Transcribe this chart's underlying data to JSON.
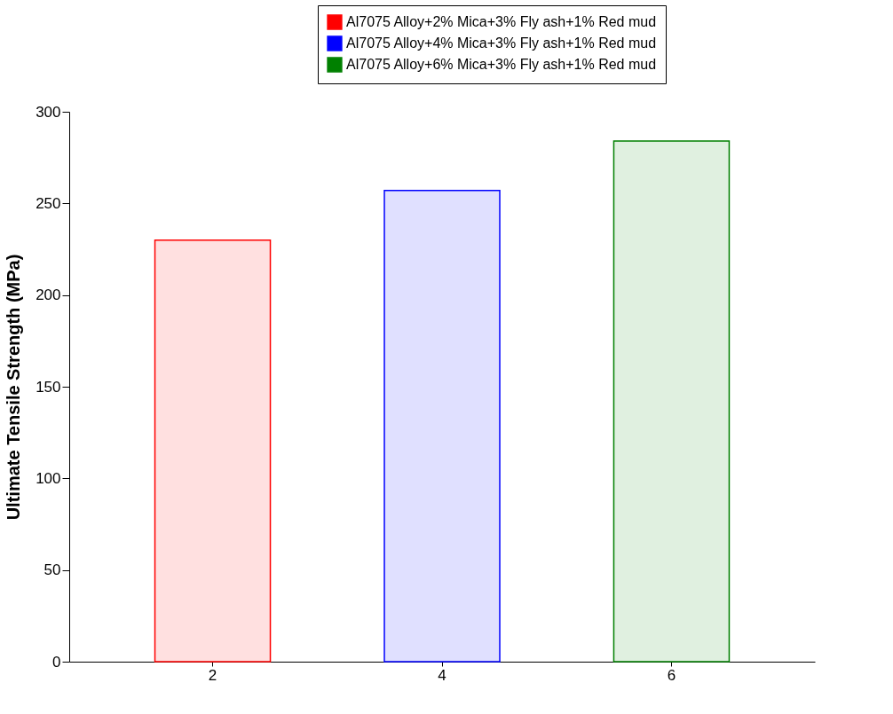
{
  "chart_data": {
    "type": "bar",
    "ylabel": "Ultimate Tensile Strength (MPa)",
    "categories": [
      "2",
      "4",
      "6"
    ],
    "series": [
      {
        "name": "Al7075 Alloy+2% Mica+3% Fly ash+1% Red mud",
        "color": "#ff0000",
        "values": [
          230,
          null,
          null
        ]
      },
      {
        "name": "Al7075 Alloy+4% Mica+3% Fly ash+1% Red mud",
        "color": "#0000ff",
        "values": [
          null,
          257,
          null
        ]
      },
      {
        "name": "Al7075 Alloy+6% Mica+3% Fly ash+1% Red mud",
        "color": "#008000",
        "values": [
          null,
          null,
          284
        ]
      }
    ],
    "ylim": [
      0,
      300
    ],
    "yticks": [
      0,
      50,
      100,
      150,
      200,
      250,
      300
    ],
    "legend": "top right",
    "grid": false
  }
}
